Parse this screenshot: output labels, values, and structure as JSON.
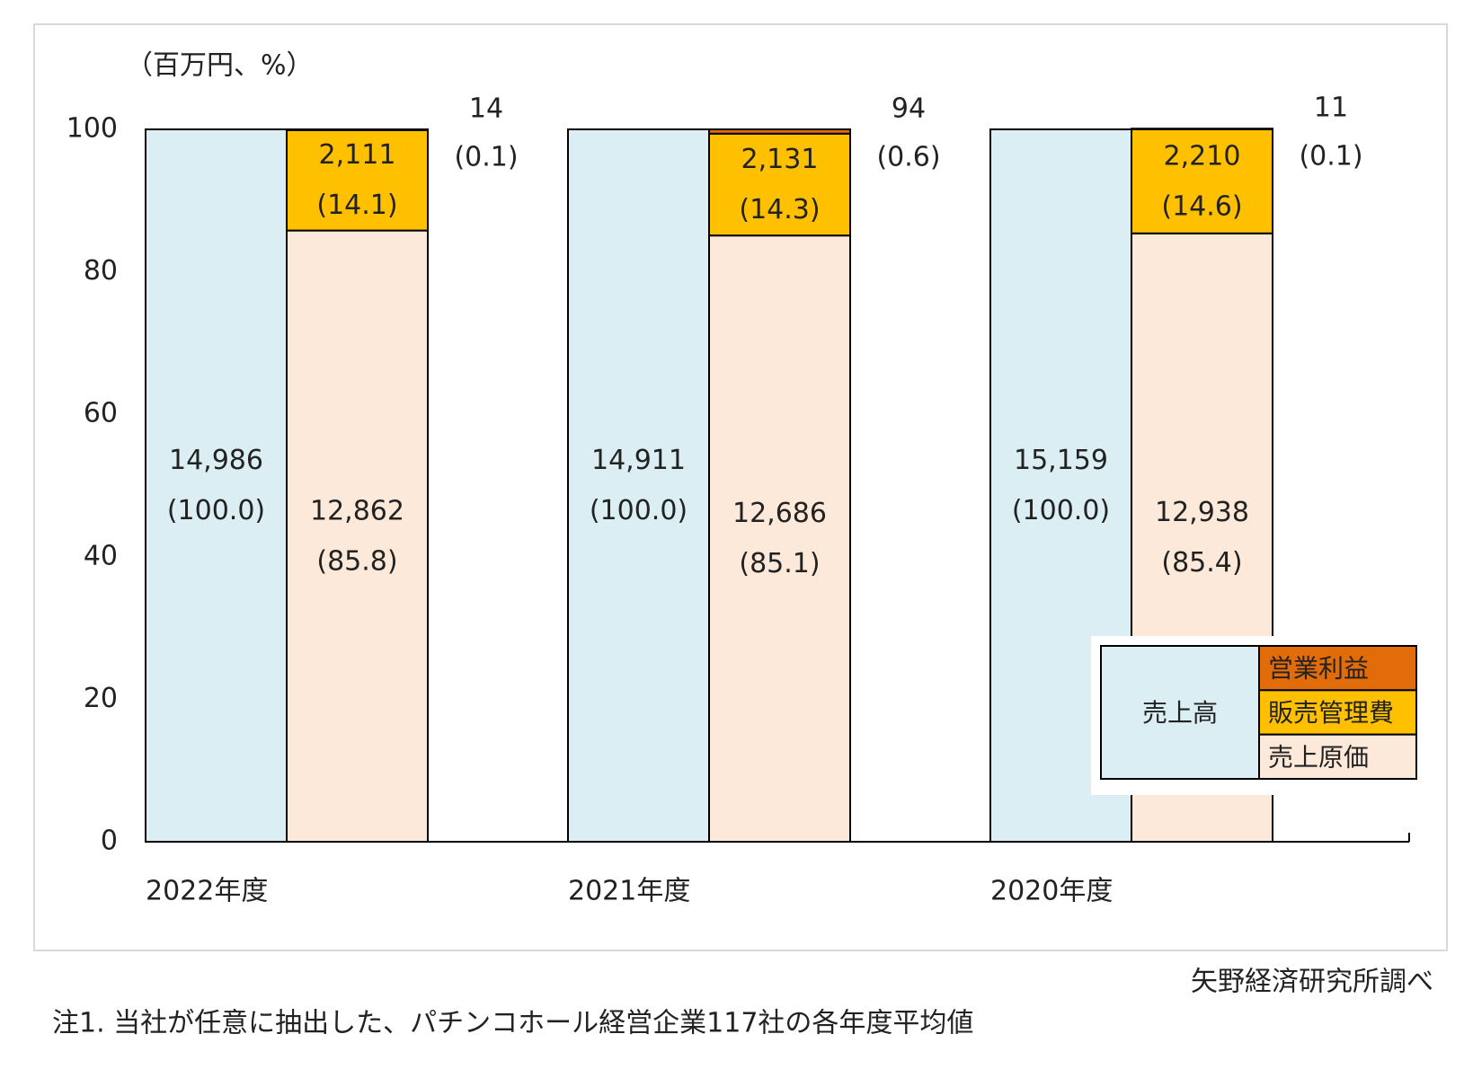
{
  "chart_data": {
    "type": "bar",
    "stacked": true,
    "units_label": "（百万円、%）",
    "categories": [
      "2022年度",
      "2021年度",
      "2020年度"
    ],
    "ylim": [
      0,
      100
    ],
    "yticks": [
      0,
      20,
      40,
      60,
      80,
      100
    ],
    "series": [
      {
        "name": "売上高",
        "color": "#daeef3",
        "stack": 0,
        "values": [
          100,
          100,
          100
        ],
        "value_labels": [
          "(100.0)",
          "(100.0)",
          "(100.0)"
        ],
        "amount_labels": [
          "14,986",
          "14,911",
          "15,159"
        ]
      },
      {
        "name": "売上原価",
        "color": "#fde9d9",
        "stack": 1,
        "values": [
          85.8,
          85.1,
          85.4
        ],
        "value_labels": [
          "(85.8)",
          "(85.1)",
          "(85.4)"
        ],
        "amount_labels": [
          "12,862",
          "12,686",
          "12,938"
        ]
      },
      {
        "name": "販売管理費",
        "color": "#ffc000",
        "stack": 1,
        "values": [
          14.1,
          14.3,
          14.6
        ],
        "value_labels": [
          "(14.1)",
          "(14.3)",
          "(14.6)"
        ],
        "amount_labels": [
          "2,111",
          "2,131",
          "2,210"
        ]
      },
      {
        "name": "営業利益",
        "color": "#e26b0a",
        "stack": 1,
        "label_position": "outside",
        "values": [
          0.1,
          0.6,
          0.1
        ],
        "value_labels": [
          "(0.1)",
          "(0.6)",
          "(0.1)"
        ],
        "amount_labels": [
          "14",
          "94",
          "11"
        ]
      }
    ],
    "source": "矢野経済研究所調べ",
    "note": "注1. 当社が任意に抽出した、パチンコホール経営企業117社の各年度平均値"
  }
}
